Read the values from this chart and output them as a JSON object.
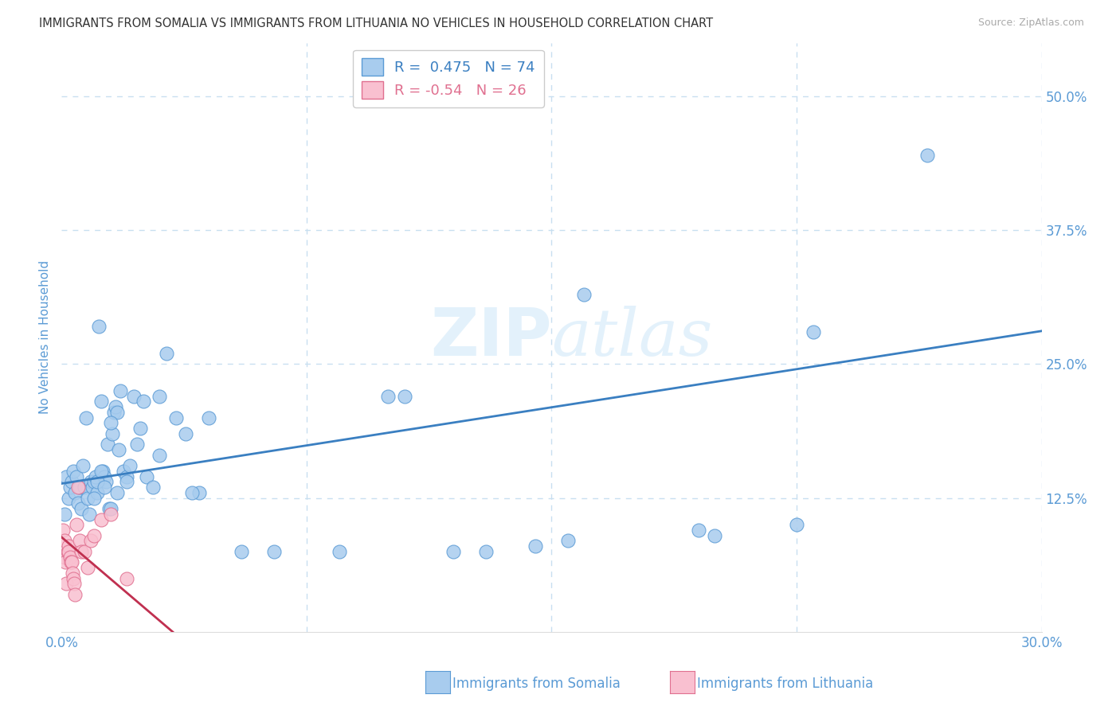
{
  "title": "IMMIGRANTS FROM SOMALIA VS IMMIGRANTS FROM LITHUANIA NO VEHICLES IN HOUSEHOLD CORRELATION CHART",
  "source": "Source: ZipAtlas.com",
  "ylabel": "No Vehicles in Household",
  "xlim": [
    0.0,
    30.0
  ],
  "ylim": [
    0.0,
    55.0
  ],
  "somalia_R": 0.475,
  "somalia_N": 74,
  "lithuania_R": -0.54,
  "lithuania_N": 26,
  "somalia_color": "#a8ccee",
  "somalia_edge_color": "#5b9bd5",
  "lithuania_color": "#f9c0d0",
  "lithuania_edge_color": "#e07090",
  "somalia_line_color": "#3a7fc1",
  "lithuania_line_color": "#c03050",
  "watermark_color": "#d8ecfa",
  "title_color": "#333333",
  "axis_color": "#5b9bd5",
  "grid_color": "#c8dff0",
  "background_color": "#ffffff",
  "somalia_x": [
    0.1,
    0.15,
    0.2,
    0.25,
    0.3,
    0.35,
    0.4,
    0.45,
    0.5,
    0.55,
    0.6,
    0.65,
    0.7,
    0.75,
    0.8,
    0.85,
    0.9,
    0.95,
    1.0,
    1.05,
    1.1,
    1.15,
    1.2,
    1.25,
    1.3,
    1.35,
    1.4,
    1.45,
    1.5,
    1.55,
    1.6,
    1.65,
    1.7,
    1.75,
    1.8,
    1.9,
    2.0,
    2.1,
    2.2,
    2.3,
    2.4,
    2.6,
    2.8,
    3.0,
    3.2,
    3.5,
    3.8,
    4.2,
    4.5,
    5.5,
    6.5,
    8.5,
    10.5,
    12.0,
    13.0,
    14.5,
    19.5,
    22.5,
    26.5,
    2.5,
    1.0,
    1.1,
    1.2,
    1.3,
    1.5,
    1.7,
    2.0,
    3.0,
    4.0,
    10.0,
    16.0,
    20.0,
    15.5,
    23.0
  ],
  "somalia_y": [
    11.0,
    14.5,
    12.5,
    13.5,
    14.0,
    15.0,
    13.0,
    14.5,
    12.0,
    13.5,
    11.5,
    15.5,
    13.5,
    20.0,
    12.5,
    11.0,
    14.0,
    13.5,
    14.0,
    14.5,
    13.0,
    28.5,
    21.5,
    15.0,
    14.5,
    14.0,
    17.5,
    11.5,
    11.5,
    18.5,
    20.5,
    21.0,
    20.5,
    17.0,
    22.5,
    15.0,
    14.5,
    15.5,
    22.0,
    17.5,
    19.0,
    14.5,
    13.5,
    22.0,
    26.0,
    20.0,
    18.5,
    13.0,
    20.0,
    7.5,
    7.5,
    7.5,
    22.0,
    7.5,
    7.5,
    8.0,
    9.5,
    10.0,
    44.5,
    21.5,
    12.5,
    14.0,
    15.0,
    13.5,
    19.5,
    13.0,
    14.0,
    16.5,
    13.0,
    22.0,
    31.5,
    9.0,
    8.5,
    28.0
  ],
  "lithuania_x": [
    0.05,
    0.08,
    0.1,
    0.12,
    0.15,
    0.18,
    0.2,
    0.22,
    0.25,
    0.28,
    0.3,
    0.33,
    0.35,
    0.38,
    0.4,
    0.45,
    0.5,
    0.55,
    0.6,
    0.7,
    0.8,
    0.9,
    1.0,
    1.2,
    1.5,
    2.0
  ],
  "lithuania_y": [
    9.5,
    7.0,
    8.5,
    6.5,
    4.5,
    7.5,
    8.0,
    7.5,
    7.0,
    6.5,
    6.5,
    5.5,
    5.0,
    4.5,
    3.5,
    10.0,
    13.5,
    8.5,
    7.5,
    7.5,
    6.0,
    8.5,
    9.0,
    10.5,
    11.0,
    5.0
  ],
  "xtick_positions": [
    0.0,
    7.5,
    15.0,
    22.5,
    30.0
  ],
  "xtick_labels": [
    "0.0%",
    "",
    "",
    "",
    "30.0%"
  ],
  "ytick_positions": [
    0.0,
    12.5,
    25.0,
    37.5,
    50.0
  ],
  "ytick_labels": [
    "",
    "12.5%",
    "25.0%",
    "37.5%",
    "50.0%"
  ]
}
